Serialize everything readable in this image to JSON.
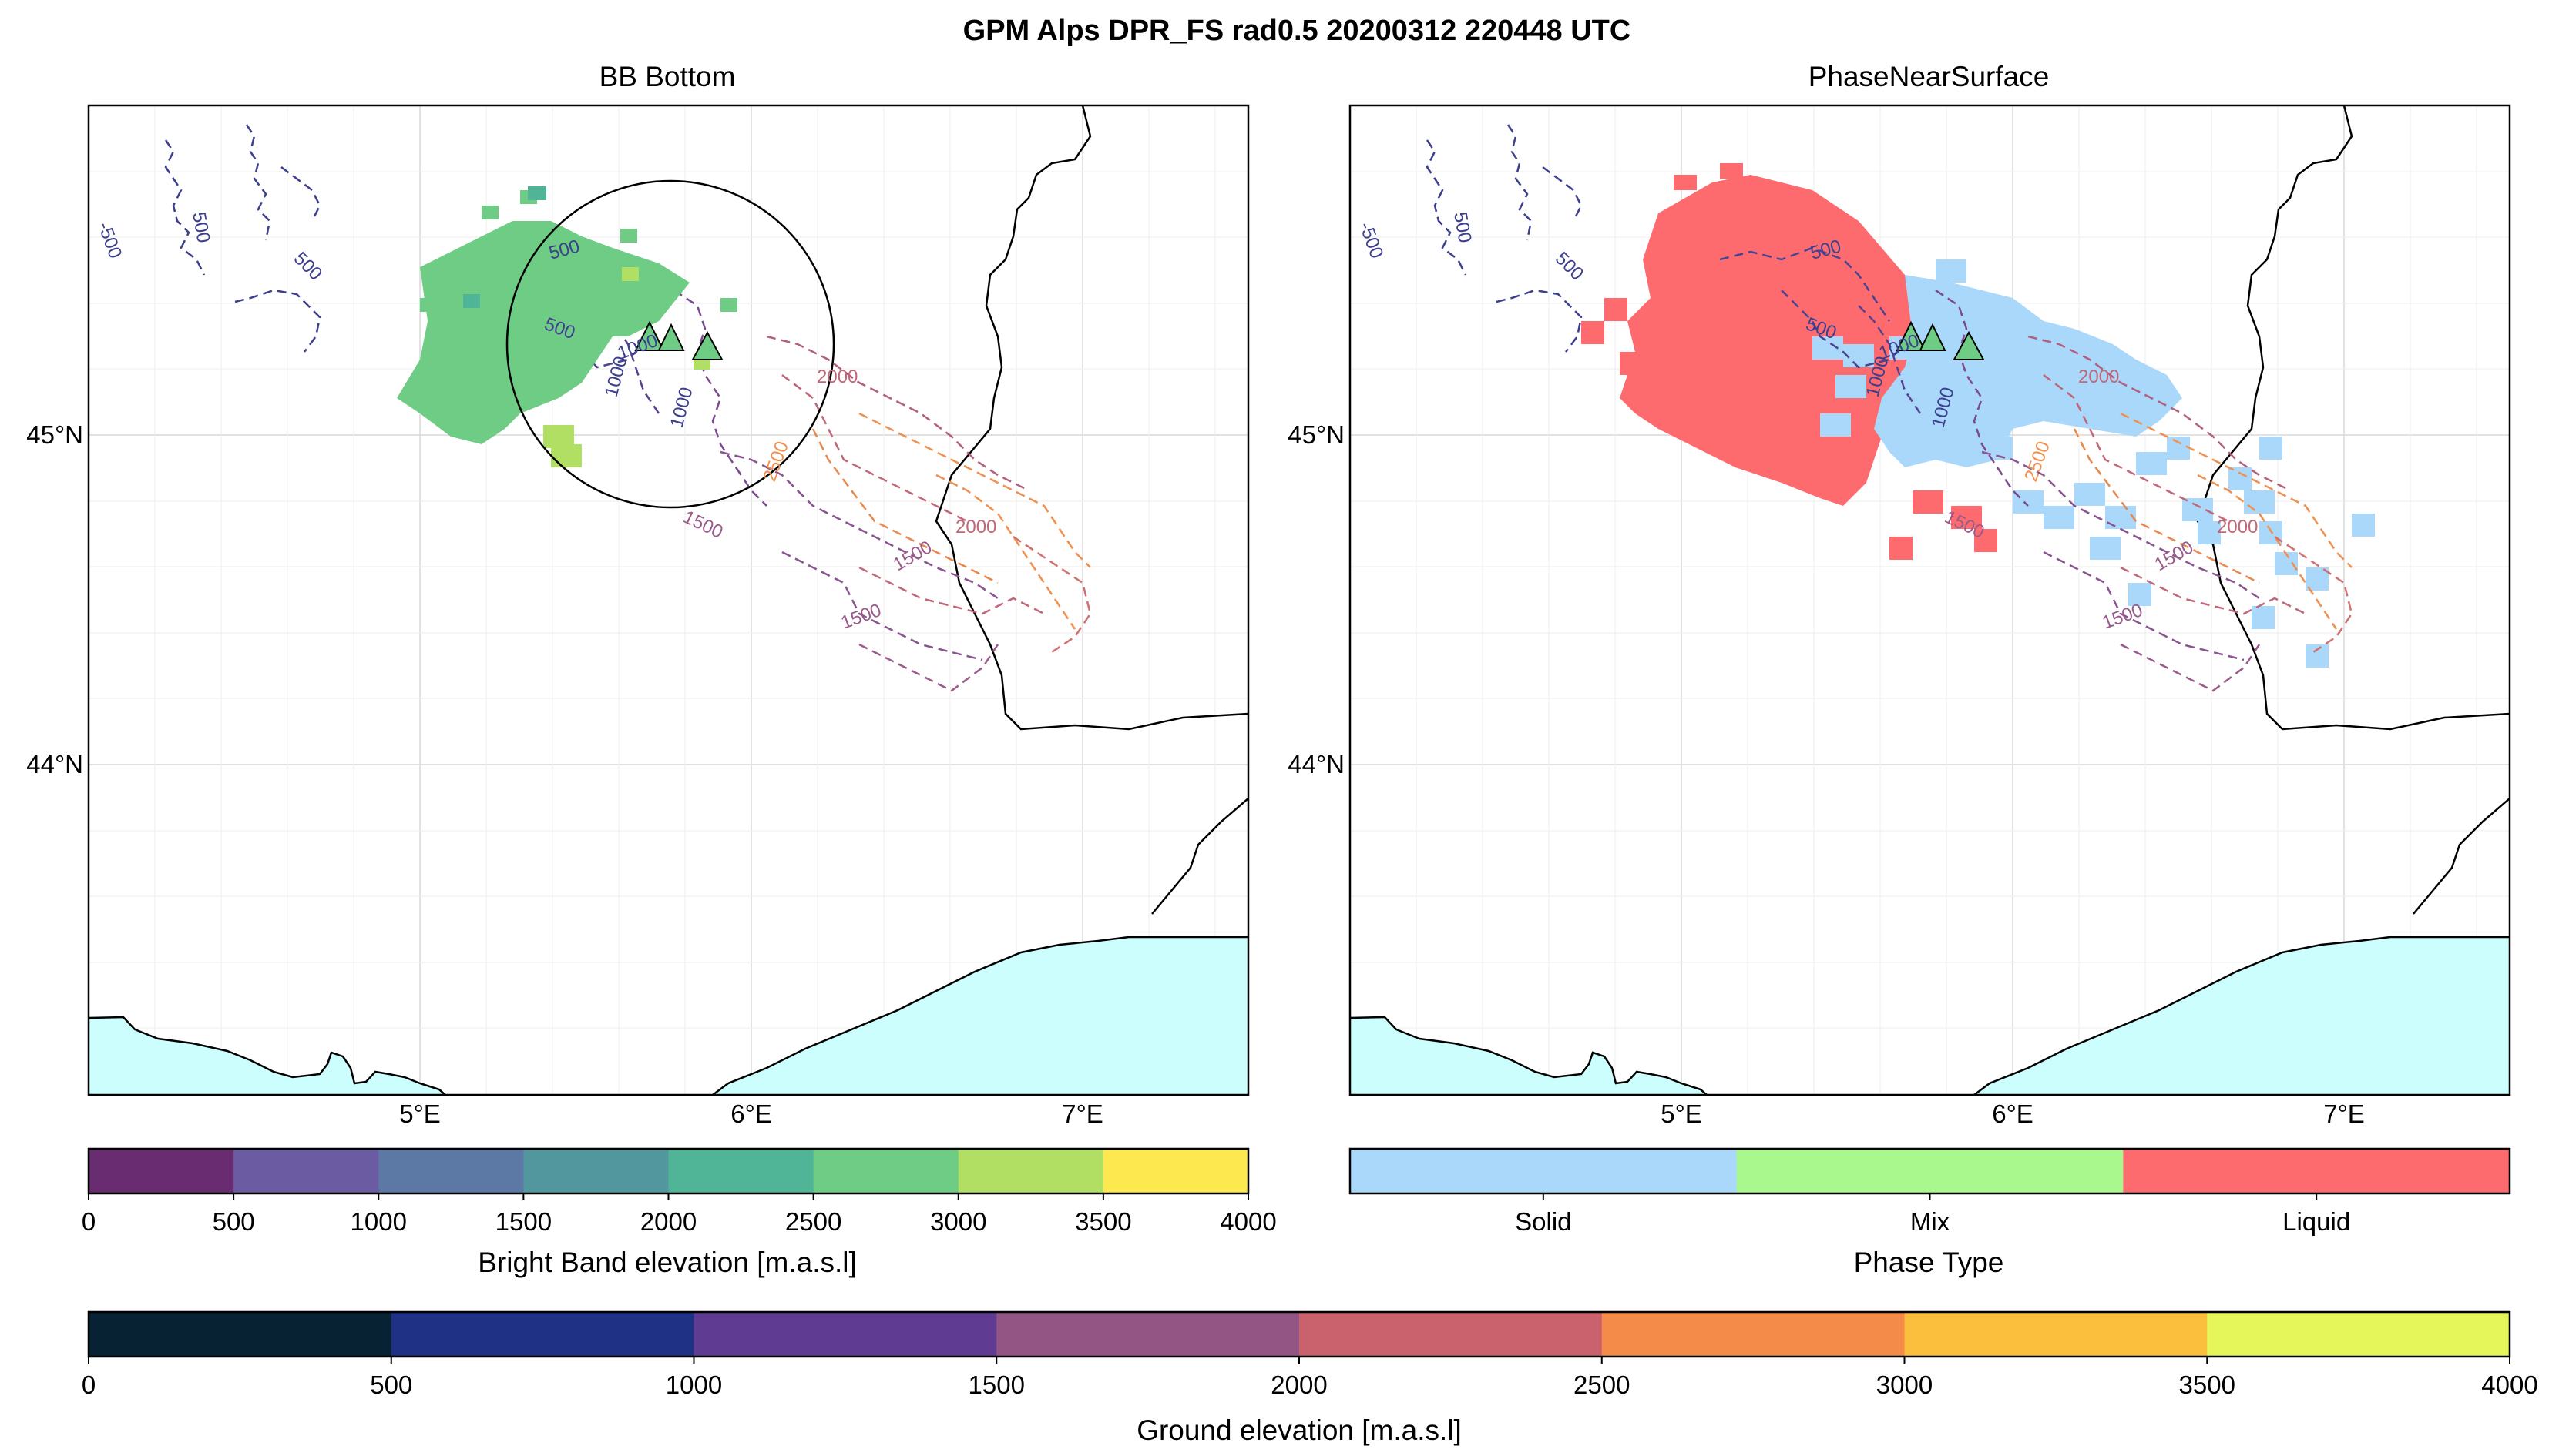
{
  "figure": {
    "title": "GPM Alps DPR_FS rad0.5 20200312 220448 UTC"
  },
  "panels": [
    {
      "title": "BB Bottom",
      "lat_labels": [
        "45°N",
        "44°N"
      ],
      "lon_labels": [
        "5°E",
        "6°E",
        "7°E"
      ]
    },
    {
      "title": "PhaseNearSurface",
      "lat_labels": [
        "45°N",
        "44°N"
      ],
      "lon_labels": [
        "5°E",
        "6°E",
        "7°E"
      ]
    }
  ],
  "contour_labels": {
    "left": [
      "500",
      "500",
      "500",
      "-500",
      "1000",
      "1000",
      "1000",
      "1500",
      "1500",
      "2000",
      "2000",
      "2500",
      "500",
      "1500"
    ],
    "right": [
      "500",
      "500",
      "500",
      "-500",
      "1000",
      "1000",
      "1000",
      "1500",
      "1500",
      "2000",
      "2000",
      "2500",
      "500",
      "1500"
    ]
  },
  "colorbars": {
    "bright_band": {
      "label": "Bright Band elevation [m.a.s.l]",
      "ticks": [
        "0",
        "500",
        "1000",
        "1500",
        "2000",
        "2500",
        "3000",
        "3500",
        "4000"
      ],
      "colors": [
        "#6a2c70",
        "#6a5ba3",
        "#5b79a4",
        "#52979e",
        "#4fb596",
        "#6ecc84",
        "#b1df63",
        "#fde94f"
      ]
    },
    "phase": {
      "label": "Phase Type",
      "ticks": [
        "Solid",
        "Mix",
        "Liquid"
      ],
      "colors": [
        "#a9d8fb",
        "#a9f88d",
        "#fe6b6e"
      ]
    },
    "ground": {
      "label": "Ground elevation [m.a.s.l]",
      "ticks": [
        "0",
        "500",
        "1000",
        "1500",
        "2000",
        "2500",
        "3000",
        "3500",
        "4000"
      ],
      "colors": [
        "#062233",
        "#1f3185",
        "#5f3b92",
        "#935584",
        "#c9626d",
        "#f48b48",
        "#fbbe3d",
        "#e4f65a"
      ]
    }
  },
  "chart_data": {
    "type": "map",
    "extent_lon": [
      4.0,
      7.5
    ],
    "extent_lat": [
      43.0,
      46.0
    ],
    "grid": true,
    "sea_color": "#ccfefe",
    "stations": [
      {
        "lon": 5.68,
        "lat": 45.2
      },
      {
        "lon": 5.75,
        "lat": 45.18
      },
      {
        "lon": 5.85,
        "lat": 45.15
      }
    ],
    "circle": {
      "center_lon": 5.75,
      "center_lat": 45.2,
      "radius_deg": 0.5
    }
  }
}
